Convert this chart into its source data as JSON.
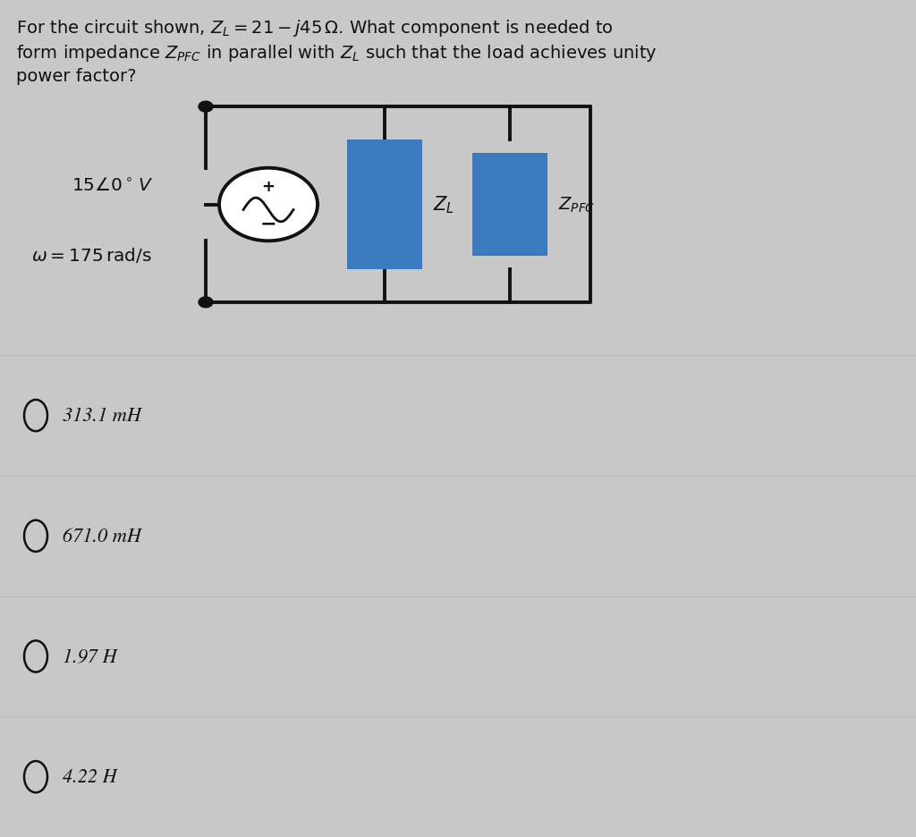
{
  "bg_top_color": "#c8c8c8",
  "bg_bottom_color": "#e8e8e8",
  "question_line1": "For the circuit shown, $Z_L = 21 - j45\\,\\Omega$. What component is needed to",
  "question_line2": "form impedance $Z_{PFC}$ in parallel with $Z_L$ such that the load achieves unity",
  "question_line3": "power factor?",
  "source_label": "$15\\angle0^\\circ\\,V$",
  "omega_label": "$\\omega = 175\\,\\mathrm{rad/s}$",
  "ZL_label": "$Z_L$",
  "ZPFC_label": "$Z_{PFC}$",
  "choices": [
    "313.1 mH",
    "671.0 mH",
    "1.97 H",
    "4.22 H"
  ],
  "wire_color": "#111111",
  "rect_color": "#3a7abf",
  "text_color": "#111111",
  "divider_color": "#bbbbbb",
  "choice_bg": "#dce8f0"
}
